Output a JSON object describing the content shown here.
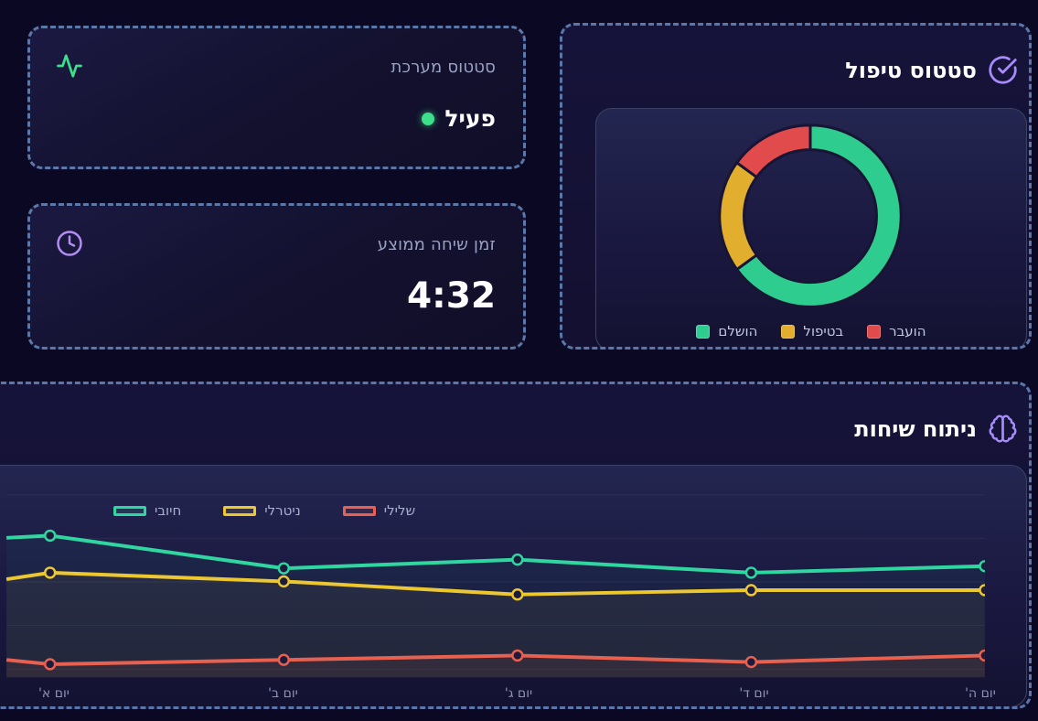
{
  "colors": {
    "accent_purple": "#a78bfa",
    "success_green": "#3ce08a",
    "dashed_border": "#688abe",
    "donut_completed": "#2ecc8e",
    "donut_in_treatment": "#e2ae2e",
    "donut_transferred": "#e14b4b",
    "line_positive": "#2fd6a0",
    "line_neutral": "#ecc72f",
    "line_negative": "#e8604f"
  },
  "stat_cards": [
    {
      "title": "סטטוס מערכת",
      "value": "פעיל",
      "icon": "activity-icon"
    },
    {
      "title": "זמן שיחה ממוצע",
      "value": "4:32",
      "icon": "clock-icon"
    }
  ],
  "treatment_section": {
    "title": "סטטוס טיפול",
    "icon": "check-circle-icon"
  },
  "analysis_section": {
    "title": "ניתוח שיחות",
    "icon": "brain-icon"
  },
  "chart_data": [
    {
      "type": "pie",
      "donut": true,
      "title": "סטטוס טיפול",
      "labels": [
        "הושלם",
        "בטיפול",
        "הועבר"
      ],
      "values": [
        65,
        20,
        15
      ],
      "colors": [
        "#2ecc8e",
        "#e2ae2e",
        "#e14b4b"
      ],
      "start_angle_deg": 0,
      "direction": "clockwise",
      "legend_position": "bottom"
    },
    {
      "type": "line",
      "title": "ניתוח שיחות",
      "categories": [
        "יום א'",
        "יום ב'",
        "יום ג'",
        "יום ד'",
        "יום ה'"
      ],
      "series": [
        {
          "name": "חיובי",
          "color": "#2fd6a0",
          "values": [
            65,
            50,
            54,
            48,
            51
          ],
          "edge_value": 64
        },
        {
          "name": "ניטרלי",
          "color": "#ecc72f",
          "values": [
            48,
            44,
            38,
            40,
            40
          ],
          "edge_value": 45
        },
        {
          "name": "שלילי",
          "color": "#e8604f",
          "values": [
            6,
            8,
            10,
            7,
            10
          ],
          "edge_value": 8
        }
      ],
      "ylim": [
        0,
        90
      ],
      "grid": "horizontal",
      "fill": true,
      "legend_position": "top"
    }
  ]
}
